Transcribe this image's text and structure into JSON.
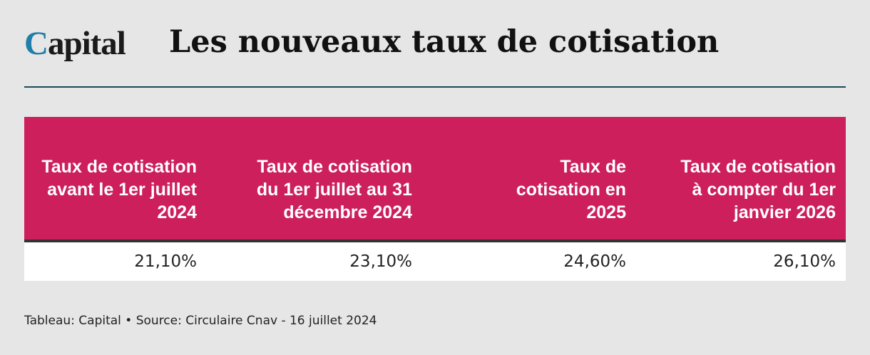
{
  "logo": {
    "first_letter": "C",
    "rest": "apital"
  },
  "title": "Les nouveaux taux de cotisation",
  "chart_data": {
    "type": "table",
    "columns": [
      "Taux de cotisation avant le 1er juillet 2024",
      "Taux de cotisation du 1er juillet au 31 décembre 2024",
      "Taux de cotisation en 2025",
      "Taux de cotisation à compter du 1er janvier 2026"
    ],
    "rows": [
      [
        "21,10%",
        "23,10%",
        "24,60%",
        "26,10%"
      ]
    ]
  },
  "footer": "Tableau: Capital • Source: Circulaire Cnav - 16 juillet 2024",
  "colors": {
    "header_bg": "#cc1f5c",
    "logo_accent": "#1f7fa8",
    "rule": "#1c4a5a",
    "page_bg": "#e6e6e6"
  }
}
